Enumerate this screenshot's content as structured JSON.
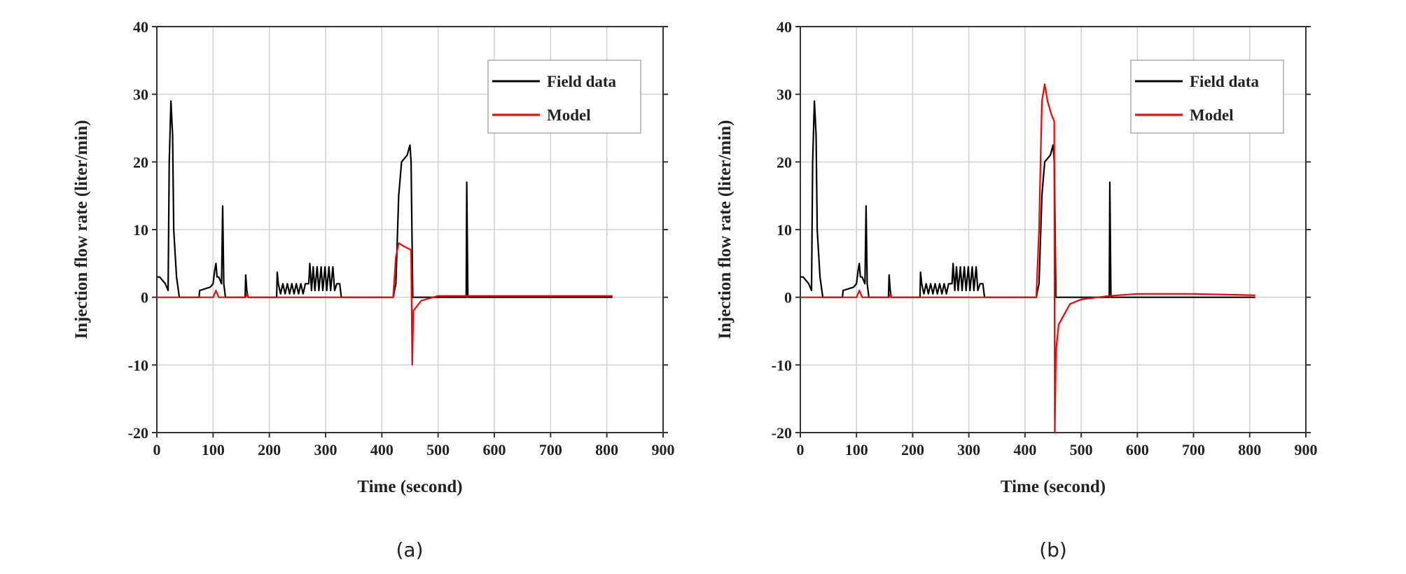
{
  "chart_data": [
    {
      "type": "line",
      "caption": "(a)",
      "xlabel": "Time (second)",
      "ylabel": "Injection flow rate (liter/min)",
      "xlim": [
        0,
        900
      ],
      "ylim": [
        -20,
        40
      ],
      "xticks": [
        0,
        100,
        200,
        300,
        400,
        500,
        600,
        700,
        800,
        900
      ],
      "yticks": [
        -20,
        -10,
        0,
        10,
        20,
        30,
        40
      ],
      "grid": true,
      "legend_position": "top-right",
      "series": [
        {
          "name": "Field data",
          "color": "#000000",
          "points": [
            [
              0,
              3
            ],
            [
              5,
              3
            ],
            [
              15,
              2
            ],
            [
              20,
              1
            ],
            [
              22,
              20
            ],
            [
              25,
              29
            ],
            [
              28,
              24
            ],
            [
              30,
              10
            ],
            [
              35,
              3
            ],
            [
              40,
              0
            ],
            [
              75,
              0
            ],
            [
              76,
              1
            ],
            [
              95,
              1.5
            ],
            [
              100,
              2
            ],
            [
              103,
              4
            ],
            [
              105,
              5
            ],
            [
              107,
              3
            ],
            [
              110,
              3
            ],
            [
              115,
              2
            ],
            [
              117,
              13.5
            ],
            [
              119,
              2
            ],
            [
              122,
              0
            ],
            [
              157,
              0
            ],
            [
              158,
              3.3
            ],
            [
              160,
              1
            ],
            [
              162,
              0
            ],
            [
              213,
              0
            ],
            [
              214,
              3.7
            ],
            [
              216,
              2
            ],
            [
              220,
              0.5
            ],
            [
              224,
              2
            ],
            [
              228,
              0.5
            ],
            [
              232,
              2
            ],
            [
              236,
              0.5
            ],
            [
              240,
              2
            ],
            [
              244,
              0.5
            ],
            [
              248,
              2
            ],
            [
              252,
              0.5
            ],
            [
              256,
              2
            ],
            [
              260,
              0.5
            ],
            [
              264,
              2
            ],
            [
              270,
              2
            ],
            [
              272,
              5
            ],
            [
              275,
              1
            ],
            [
              278,
              4.5
            ],
            [
              281,
              1
            ],
            [
              285,
              4.5
            ],
            [
              288,
              1
            ],
            [
              292,
              4.5
            ],
            [
              295,
              1
            ],
            [
              299,
              4.5
            ],
            [
              302,
              1
            ],
            [
              306,
              4.5
            ],
            [
              309,
              1
            ],
            [
              313,
              4.5
            ],
            [
              316,
              1
            ],
            [
              320,
              2
            ],
            [
              325,
              2
            ],
            [
              328,
              0
            ],
            [
              420,
              0
            ],
            [
              425,
              2
            ],
            [
              430,
              15
            ],
            [
              435,
              20
            ],
            [
              440,
              20.5
            ],
            [
              445,
              21
            ],
            [
              450,
              22.5
            ],
            [
              452,
              20
            ],
            [
              455,
              0
            ],
            [
              550,
              0
            ],
            [
              551,
              17
            ],
            [
              553,
              0
            ],
            [
              810,
              0
            ]
          ]
        },
        {
          "name": "Model",
          "color": "#ff0000",
          "points": [
            [
              0,
              0
            ],
            [
              100,
              0
            ],
            [
              105,
              1
            ],
            [
              110,
              0
            ],
            [
              158,
              0
            ],
            [
              160,
              0.5
            ],
            [
              162,
              0
            ],
            [
              420,
              0
            ],
            [
              425,
              6
            ],
            [
              430,
              8
            ],
            [
              440,
              7.5
            ],
            [
              452,
              7
            ],
            [
              454,
              -10
            ],
            [
              456,
              -2
            ],
            [
              470,
              -0.5
            ],
            [
              500,
              0.2
            ],
            [
              810,
              0.2
            ]
          ]
        }
      ]
    },
    {
      "type": "line",
      "caption": "(b)",
      "xlabel": "Time (second)",
      "ylabel": "Injection flow rate (liter/min)",
      "xlim": [
        0,
        900
      ],
      "ylim": [
        -20,
        40
      ],
      "xticks": [
        0,
        100,
        200,
        300,
        400,
        500,
        600,
        700,
        800,
        900
      ],
      "yticks": [
        -20,
        -10,
        0,
        10,
        20,
        30,
        40
      ],
      "grid": true,
      "legend_position": "top-right",
      "series": [
        {
          "name": "Field data",
          "color": "#000000",
          "points": [
            [
              0,
              3
            ],
            [
              5,
              3
            ],
            [
              15,
              2
            ],
            [
              20,
              1
            ],
            [
              22,
              20
            ],
            [
              25,
              29
            ],
            [
              28,
              24
            ],
            [
              30,
              10
            ],
            [
              35,
              3
            ],
            [
              40,
              0
            ],
            [
              75,
              0
            ],
            [
              76,
              1
            ],
            [
              95,
              1.5
            ],
            [
              100,
              2
            ],
            [
              103,
              4
            ],
            [
              105,
              5
            ],
            [
              107,
              3
            ],
            [
              110,
              3
            ],
            [
              115,
              2
            ],
            [
              117,
              13.5
            ],
            [
              119,
              2
            ],
            [
              122,
              0
            ],
            [
              157,
              0
            ],
            [
              158,
              3.3
            ],
            [
              160,
              1
            ],
            [
              162,
              0
            ],
            [
              213,
              0
            ],
            [
              214,
              3.7
            ],
            [
              216,
              2
            ],
            [
              220,
              0.5
            ],
            [
              224,
              2
            ],
            [
              228,
              0.5
            ],
            [
              232,
              2
            ],
            [
              236,
              0.5
            ],
            [
              240,
              2
            ],
            [
              244,
              0.5
            ],
            [
              248,
              2
            ],
            [
              252,
              0.5
            ],
            [
              256,
              2
            ],
            [
              260,
              0.5
            ],
            [
              264,
              2
            ],
            [
              270,
              2
            ],
            [
              272,
              5
            ],
            [
              275,
              1
            ],
            [
              278,
              4.5
            ],
            [
              281,
              1
            ],
            [
              285,
              4.5
            ],
            [
              288,
              1
            ],
            [
              292,
              4.5
            ],
            [
              295,
              1
            ],
            [
              299,
              4.5
            ],
            [
              302,
              1
            ],
            [
              306,
              4.5
            ],
            [
              309,
              1
            ],
            [
              313,
              4.5
            ],
            [
              316,
              1
            ],
            [
              320,
              2
            ],
            [
              325,
              2
            ],
            [
              328,
              0
            ],
            [
              420,
              0
            ],
            [
              425,
              2
            ],
            [
              430,
              15
            ],
            [
              435,
              20
            ],
            [
              440,
              20.5
            ],
            [
              445,
              21
            ],
            [
              450,
              22.5
            ],
            [
              452,
              20
            ],
            [
              455,
              0
            ],
            [
              550,
              0
            ],
            [
              551,
              17
            ],
            [
              553,
              0
            ],
            [
              810,
              0
            ]
          ]
        },
        {
          "name": "Model",
          "color": "#ff0000",
          "points": [
            [
              0,
              0
            ],
            [
              100,
              0
            ],
            [
              105,
              1
            ],
            [
              110,
              0
            ],
            [
              158,
              0
            ],
            [
              160,
              0.5
            ],
            [
              162,
              0
            ],
            [
              420,
              0
            ],
            [
              425,
              10
            ],
            [
              430,
              29
            ],
            [
              435,
              31.5
            ],
            [
              440,
              29
            ],
            [
              447,
              27
            ],
            [
              452,
              26
            ],
            [
              453,
              -20
            ],
            [
              455,
              -8
            ],
            [
              460,
              -4
            ],
            [
              480,
              -1
            ],
            [
              500,
              -0.3
            ],
            [
              550,
              0.2
            ],
            [
              600,
              0.5
            ],
            [
              700,
              0.5
            ],
            [
              810,
              0.3
            ]
          ]
        }
      ]
    }
  ]
}
